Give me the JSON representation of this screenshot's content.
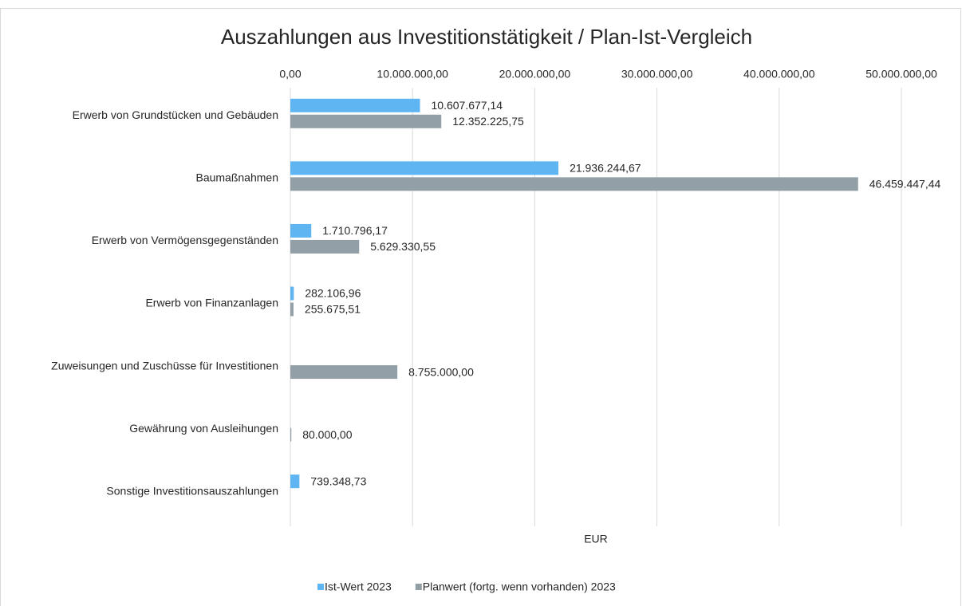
{
  "chart_data": {
    "type": "bar",
    "orientation": "horizontal",
    "title": "Auszahlungen aus Investitionstätigkeit / Plan-Ist-Vergleich",
    "x_label": "EUR",
    "categories": [
      "Erwerb von Grundstücken und Gebäuden",
      "Baumaßnahmen",
      "Erwerb von Vermögensgegenständen",
      "Erwerb von Finanzanlagen",
      "Zuweisungen und Zuschüsse für Investitionen",
      "Gewährung von Ausleihungen",
      "Sonstige Investitionsauszahlungen"
    ],
    "series": [
      {
        "name": "Ist-Wert 2023",
        "color": "#5fb4f2",
        "values": [
          10607677.14,
          21936244.67,
          1710796.17,
          282106.96,
          null,
          null,
          739348.73
        ],
        "value_labels": [
          "10.607.677,14",
          "21.936.244,67",
          "1.710.796,17",
          "282.106,96",
          null,
          null,
          "739.348,73"
        ]
      },
      {
        "name": "Planwert (fortg. wenn vorhanden) 2023",
        "color": "#939fa6",
        "values": [
          12352225.75,
          46459447.44,
          5629330.55,
          255675.51,
          8755000.0,
          80000.0,
          null
        ],
        "value_labels": [
          "12.352.225,75",
          "46.459.447,44",
          "5.629.330,55",
          "255.675,51",
          "8.755.000,00",
          "80.000,00",
          null
        ]
      }
    ],
    "xlim": [
      0,
      50000000
    ],
    "xticks": [
      {
        "value": 0,
        "label": "0,00"
      },
      {
        "value": 10000000,
        "label": "10.000.000,00"
      },
      {
        "value": 20000000,
        "label": "20.000.000,00"
      },
      {
        "value": 30000000,
        "label": "30.000.000,00"
      },
      {
        "value": 40000000,
        "label": "40.000.000,00"
      },
      {
        "value": 50000000,
        "label": "50.000.000,00"
      }
    ],
    "grid": true,
    "legend": "bottom"
  }
}
